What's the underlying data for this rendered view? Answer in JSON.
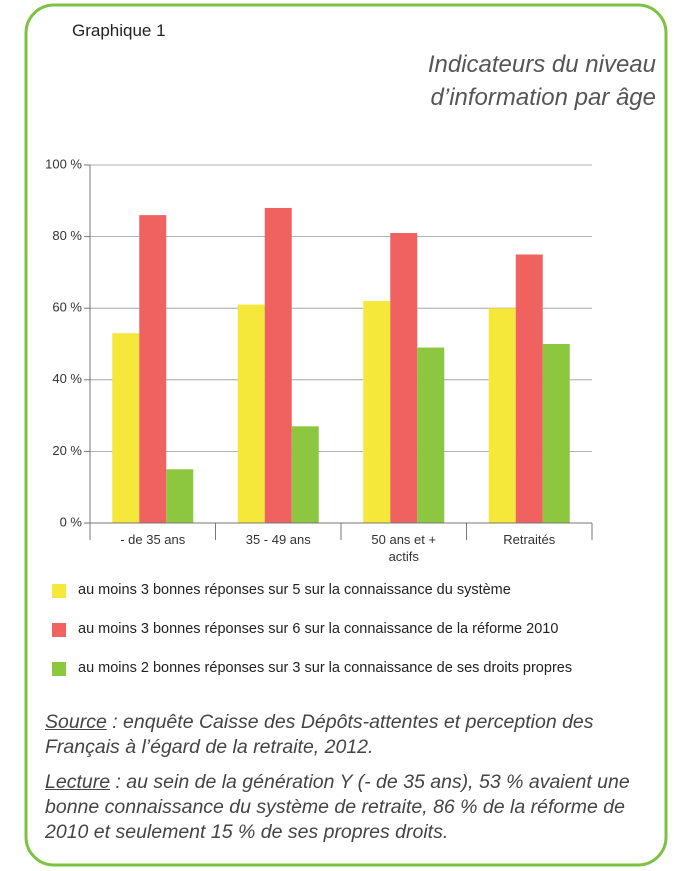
{
  "chart_data": {
    "type": "bar",
    "label": "Graphique 1",
    "title": "Indicateurs du niveau d’information par âge",
    "categories": [
      "- de 35 ans",
      "35 - 49 ans",
      "50 ans et + actifs",
      "Retraités"
    ],
    "series": [
      {
        "name": "au moins 3 bonnes réponses sur 5 sur la connaissance du système",
        "color": "#f5e83b",
        "values": [
          53,
          61,
          62,
          60
        ]
      },
      {
        "name": "au moins 3 bonnes réponses sur 6 sur la connaissance de la réforme 2010",
        "color": "#ef6260",
        "values": [
          86,
          88,
          81,
          75
        ]
      },
      {
        "name": "au moins 2 bonnes réponses sur 3 sur la connaissance de ses droits propres",
        "color": "#8dc63f",
        "values": [
          15,
          27,
          49,
          50
        ]
      }
    ],
    "ylim": [
      0,
      100
    ],
    "yticks": [
      {
        "value": 0,
        "label": "0 %"
      },
      {
        "value": 20,
        "label": "20 %"
      },
      {
        "value": 40,
        "label": "40 %"
      },
      {
        "value": 60,
        "label": "60 %"
      },
      {
        "value": 80,
        "label": "80 %"
      },
      {
        "value": 100,
        "label": "100 %"
      }
    ],
    "grid": true,
    "source": {
      "label": "Source",
      "text": ": enquête Caisse des Dépôts-attentes et perception des Français à l’égard de la retraite, 2012."
    },
    "reading": {
      "label": "Lecture",
      "text": ": au sein de la génération Y (- de 35 ans), 53 % avaient une bonne connaissance du système de retraite, 86 % de la réforme de 2010 et seulement 15 % de ses propres droits."
    }
  }
}
